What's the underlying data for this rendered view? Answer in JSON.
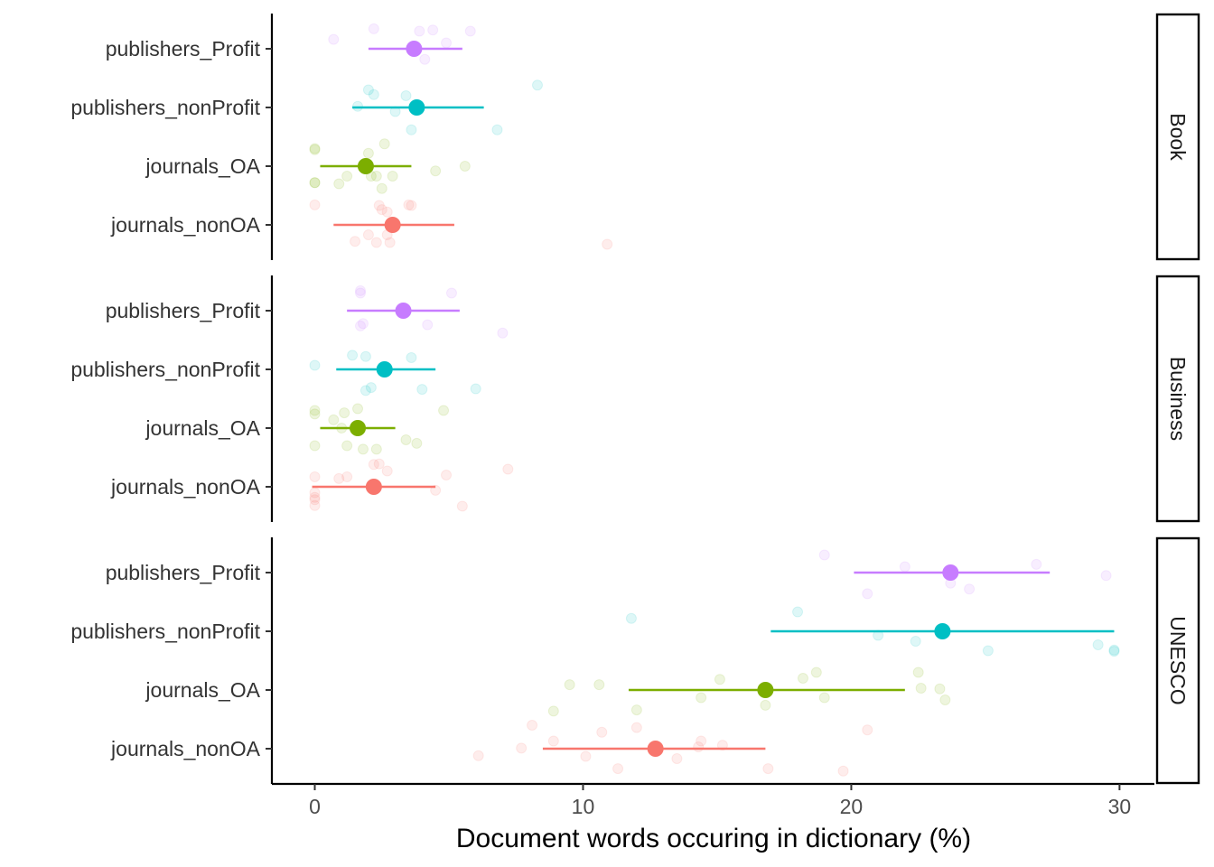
{
  "chart_data": {
    "type": "scatter",
    "title": "",
    "xlabel": "Document words occuring in dictionary (%)",
    "ylabel": "",
    "xlim": [
      -1.6,
      31.3
    ],
    "xticks": [
      0,
      10,
      20,
      30
    ],
    "categories": [
      "publishers_Profit",
      "publishers_nonProfit",
      "journals_OA",
      "journals_nonOA"
    ],
    "colors": {
      "publishers_Profit": "#C77CFF",
      "publishers_nonProfit": "#00BFC4",
      "journals_OA": "#7CAE00",
      "journals_nonOA": "#F8766D"
    },
    "grid": false,
    "legend": "none",
    "panels": [
      {
        "strip": "Book",
        "series": [
          {
            "category": "publishers_Profit",
            "mean": 3.7,
            "lower": 2.0,
            "upper": 5.5,
            "points": [
              [
                0.7,
                0.16
              ],
              [
                2.2,
                0.34
              ],
              [
                3.9,
                0.3
              ],
              [
                4.4,
                0.32
              ],
              [
                4.9,
                0.1
              ],
              [
                5.8,
                0.3
              ],
              [
                4.1,
                -0.18
              ]
            ]
          },
          {
            "category": "publishers_nonProfit",
            "mean": 3.8,
            "lower": 1.4,
            "upper": 6.3,
            "points": [
              [
                2.0,
                0.3
              ],
              [
                2.2,
                0.22
              ],
              [
                3.4,
                0.2
              ],
              [
                1.6,
                0.02
              ],
              [
                3.0,
                -0.07
              ],
              [
                3.6,
                -0.38
              ],
              [
                6.8,
                -0.38
              ],
              [
                8.3,
                0.38
              ]
            ]
          },
          {
            "category": "journals_OA",
            "mean": 1.9,
            "lower": 0.2,
            "upper": 3.6,
            "points": [
              [
                0.0,
                0.3
              ],
              [
                0.0,
                0.28
              ],
              [
                2.0,
                0.22
              ],
              [
                2.6,
                0.38
              ],
              [
                1.2,
                -0.17
              ],
              [
                2.1,
                -0.17
              ],
              [
                2.3,
                -0.17
              ],
              [
                2.9,
                -0.17
              ],
              [
                4.5,
                -0.08
              ],
              [
                5.6,
                0.0
              ],
              [
                0.0,
                -0.28
              ],
              [
                0.0,
                -0.28
              ],
              [
                0.9,
                -0.3
              ],
              [
                2.5,
                -0.38
              ]
            ]
          },
          {
            "category": "journals_nonOA",
            "mean": 2.9,
            "lower": 0.7,
            "upper": 5.2,
            "points": [
              [
                0.0,
                0.34
              ],
              [
                2.4,
                0.33
              ],
              [
                2.5,
                0.26
              ],
              [
                2.7,
                0.22
              ],
              [
                3.5,
                0.34
              ],
              [
                3.6,
                0.33
              ],
              [
                2.0,
                -0.17
              ],
              [
                2.7,
                -0.17
              ],
              [
                2.3,
                -0.3
              ],
              [
                1.5,
                -0.28
              ],
              [
                2.8,
                -0.3
              ],
              [
                10.9,
                -0.33
              ]
            ]
          }
        ]
      },
      {
        "strip": "Business",
        "series": [
          {
            "category": "publishers_Profit",
            "mean": 3.3,
            "lower": 1.2,
            "upper": 5.4,
            "points": [
              [
                1.7,
                0.34
              ],
              [
                1.7,
                0.3
              ],
              [
                5.1,
                0.3
              ],
              [
                1.8,
                -0.22
              ],
              [
                1.7,
                -0.26
              ],
              [
                4.2,
                -0.24
              ],
              [
                7.0,
                -0.38
              ]
            ]
          },
          {
            "category": "publishers_nonProfit",
            "mean": 2.6,
            "lower": 0.8,
            "upper": 4.5,
            "points": [
              [
                0.0,
                0.07
              ],
              [
                1.4,
                0.24
              ],
              [
                1.9,
                0.22
              ],
              [
                3.6,
                0.2
              ],
              [
                2.1,
                -0.31
              ],
              [
                1.9,
                -0.36
              ],
              [
                4.0,
                -0.34
              ],
              [
                6.0,
                -0.33
              ]
            ]
          },
          {
            "category": "journals_OA",
            "mean": 1.6,
            "lower": 0.2,
            "upper": 3.0,
            "points": [
              [
                0.0,
                0.3
              ],
              [
                0.0,
                0.24
              ],
              [
                0.7,
                0.14
              ],
              [
                1.1,
                0.26
              ],
              [
                1.6,
                0.33
              ],
              [
                1.0,
                0.0
              ],
              [
                4.8,
                0.3
              ],
              [
                1.2,
                -0.3
              ],
              [
                1.8,
                -0.36
              ],
              [
                2.3,
                -0.36
              ],
              [
                3.4,
                -0.2
              ],
              [
                3.8,
                -0.26
              ],
              [
                0.0,
                -0.3
              ]
            ]
          },
          {
            "category": "journals_nonOA",
            "mean": 2.2,
            "lower": -0.1,
            "upper": 4.5,
            "points": [
              [
                0.0,
                0.17
              ],
              [
                0.9,
                0.14
              ],
              [
                1.2,
                0.17
              ],
              [
                2.7,
                0.27
              ],
              [
                4.9,
                0.2
              ],
              [
                7.2,
                0.3
              ],
              [
                2.2,
                0.38
              ],
              [
                2.4,
                0.39
              ],
              [
                0.0,
                -0.1
              ],
              [
                0.0,
                -0.18
              ],
              [
                0.0,
                -0.22
              ],
              [
                0.0,
                -0.32
              ],
              [
                4.5,
                -0.06
              ],
              [
                5.5,
                -0.33
              ]
            ]
          }
        ]
      },
      {
        "strip": "UNESCO",
        "series": [
          {
            "category": "publishers_Profit",
            "mean": 23.7,
            "lower": 20.1,
            "upper": 27.4,
            "points": [
              [
                19.0,
                0.3
              ],
              [
                22.0,
                0.1
              ],
              [
                26.9,
                0.14
              ],
              [
                23.7,
                -0.18
              ],
              [
                24.4,
                -0.28
              ],
              [
                20.6,
                -0.36
              ],
              [
                29.5,
                -0.05
              ]
            ]
          },
          {
            "category": "publishers_nonProfit",
            "mean": 23.4,
            "lower": 17.0,
            "upper": 29.8,
            "points": [
              [
                11.8,
                0.22
              ],
              [
                18.0,
                0.33
              ],
              [
                21.0,
                -0.07
              ],
              [
                22.4,
                -0.17
              ],
              [
                25.1,
                -0.33
              ],
              [
                29.2,
                -0.23
              ],
              [
                29.8,
                -0.32
              ],
              [
                29.8,
                -0.34
              ]
            ]
          },
          {
            "category": "journals_OA",
            "mean": 16.8,
            "lower": 11.7,
            "upper": 22.0,
            "points": [
              [
                9.5,
                0.09
              ],
              [
                10.6,
                0.09
              ],
              [
                15.1,
                0.18
              ],
              [
                18.2,
                0.2
              ],
              [
                18.7,
                0.3
              ],
              [
                22.5,
                0.3
              ],
              [
                22.6,
                0.03
              ],
              [
                23.3,
                0.02
              ],
              [
                23.5,
                -0.17
              ],
              [
                14.4,
                -0.13
              ],
              [
                19.0,
                -0.13
              ],
              [
                16.8,
                -0.26
              ],
              [
                12.0,
                -0.34
              ],
              [
                8.9,
                -0.36
              ]
            ]
          },
          {
            "category": "journals_nonOA",
            "mean": 12.7,
            "lower": 8.5,
            "upper": 16.8,
            "points": [
              [
                8.1,
                0.4
              ],
              [
                10.7,
                0.28
              ],
              [
                12.0,
                0.36
              ],
              [
                14.4,
                0.13
              ],
              [
                14.3,
                0.03
              ],
              [
                15.2,
                0.06
              ],
              [
                20.6,
                0.32
              ],
              [
                8.9,
                0.13
              ],
              [
                7.7,
                0.01
              ],
              [
                6.1,
                -0.12
              ],
              [
                10.1,
                -0.13
              ],
              [
                13.5,
                -0.17
              ],
              [
                11.3,
                -0.34
              ],
              [
                16.9,
                -0.34
              ],
              [
                19.7,
                -0.38
              ]
            ]
          }
        ]
      }
    ]
  }
}
